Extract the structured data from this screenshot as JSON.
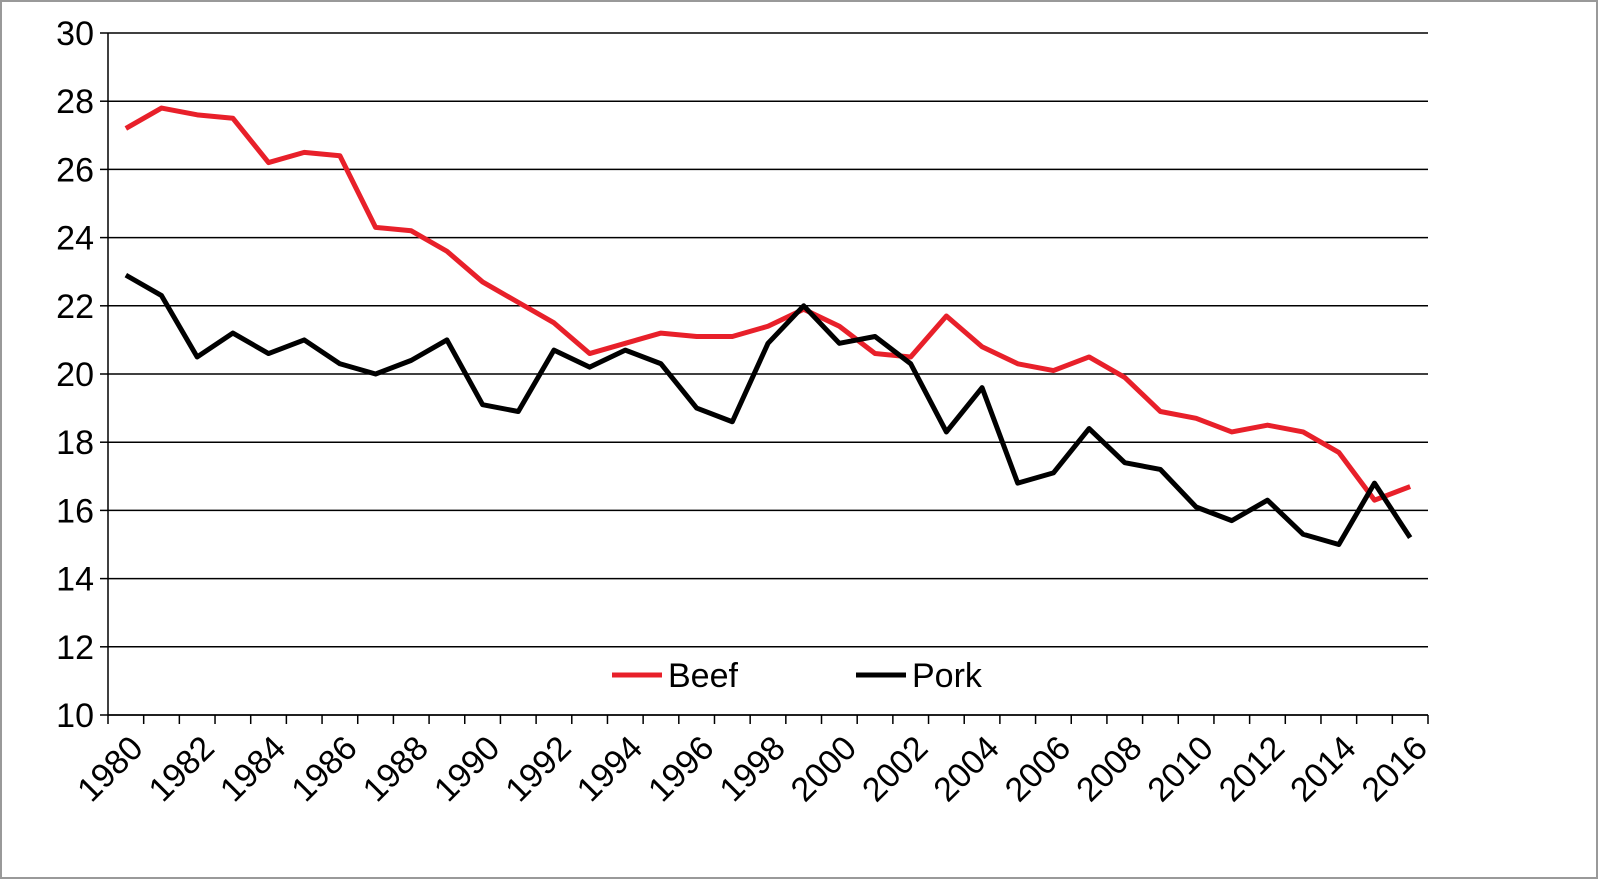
{
  "chart_data": {
    "type": "line",
    "categories": [
      "1980",
      null,
      "1982",
      null,
      "1984",
      null,
      "1986",
      null,
      "1988",
      null,
      "1990",
      null,
      "1992",
      null,
      "1994",
      null,
      "1996",
      null,
      "1998",
      null,
      "2000",
      null,
      "2002",
      null,
      "2004",
      null,
      "2006",
      null,
      "2008",
      null,
      "2010",
      null,
      "2012",
      null,
      "2014",
      null,
      "2016"
    ],
    "series": [
      {
        "name": "Beef",
        "color": "#e8202a",
        "values": [
          27.2,
          27.8,
          27.6,
          27.5,
          26.2,
          26.5,
          26.4,
          24.3,
          24.2,
          23.6,
          22.7,
          22.1,
          21.5,
          20.6,
          20.9,
          21.2,
          21.1,
          21.1,
          21.4,
          21.9,
          21.4,
          20.6,
          20.5,
          21.7,
          20.8,
          20.3,
          20.1,
          20.5,
          19.9,
          18.9,
          18.7,
          18.3,
          18.5,
          18.3,
          17.7,
          16.3,
          16.7
        ]
      },
      {
        "name": "Pork",
        "color": "#000000",
        "values": [
          22.9,
          22.3,
          20.5,
          21.2,
          20.6,
          21.0,
          20.3,
          20.0,
          20.4,
          21.0,
          19.1,
          18.9,
          20.7,
          20.2,
          20.7,
          20.3,
          19.0,
          18.6,
          20.9,
          22.0,
          20.9,
          21.1,
          20.3,
          18.3,
          19.6,
          16.8,
          17.1,
          18.4,
          17.4,
          17.2,
          16.1,
          15.7,
          16.3,
          15.3,
          15.0,
          16.8,
          15.2
        ]
      }
    ],
    "ylim": [
      10,
      30
    ],
    "yticks": [
      10,
      12,
      14,
      16,
      18,
      20,
      22,
      24,
      26,
      28,
      30
    ],
    "grid": true,
    "legend": "bottom"
  }
}
